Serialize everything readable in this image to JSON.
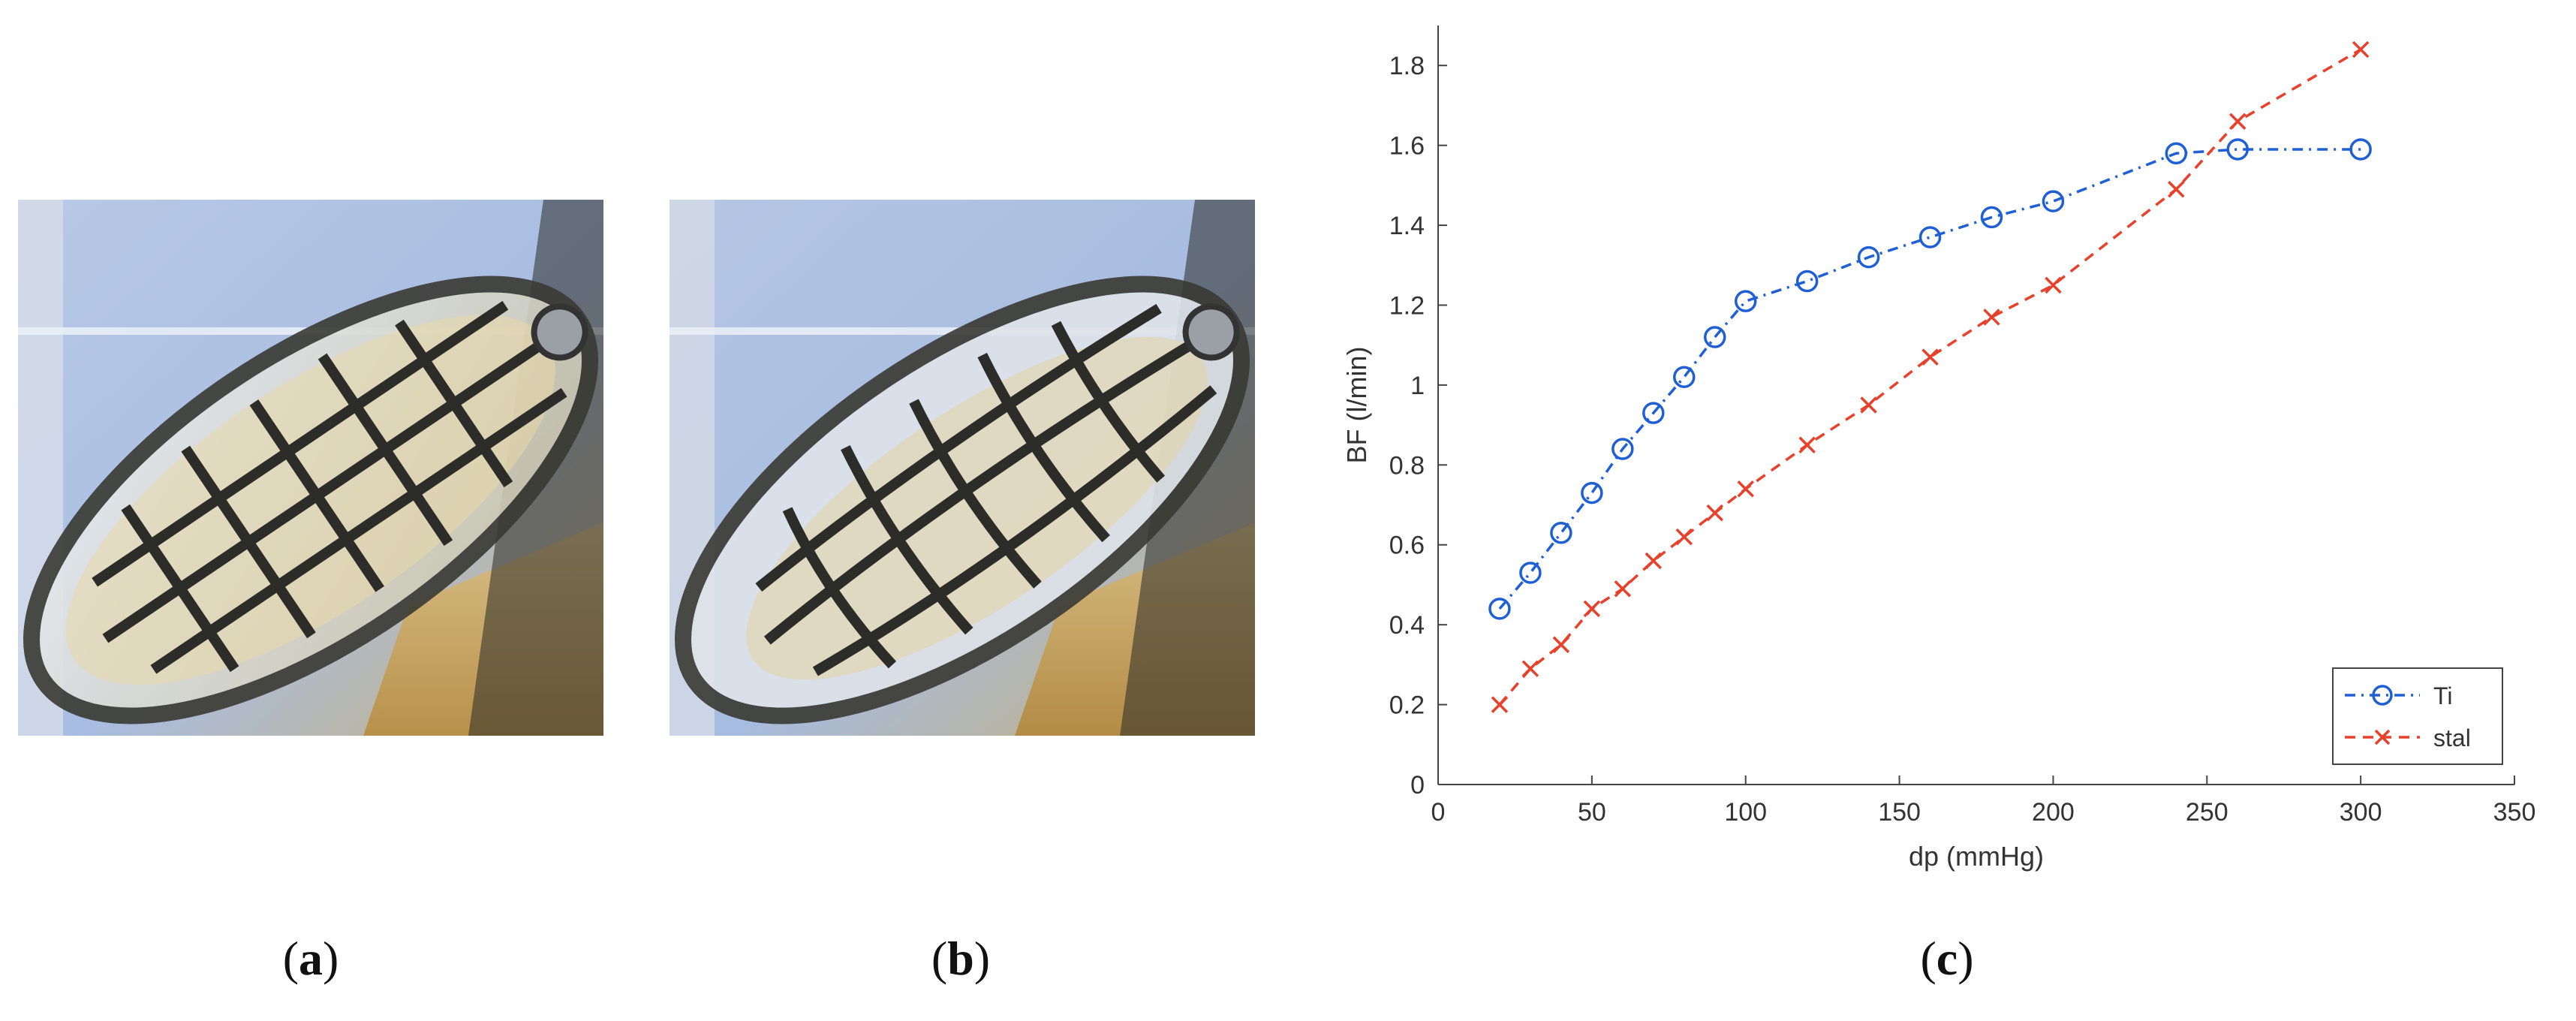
{
  "captions": {
    "a": "a",
    "b": "b",
    "c": "c"
  },
  "chart_data": {
    "type": "line",
    "xlabel": "dp (mmHg)",
    "ylabel": "BF (l/min)",
    "xlim": [
      0,
      350
    ],
    "ylim": [
      0,
      1.9
    ],
    "xticks": [
      0,
      50,
      100,
      150,
      200,
      250,
      300,
      350
    ],
    "yticks": [
      0,
      0.2,
      0.4,
      0.6,
      0.8,
      1,
      1.2,
      1.4,
      1.6,
      1.8
    ],
    "legend_position": "bottom-right",
    "series": [
      {
        "name": "Ti",
        "color": "#1f5fd6",
        "marker": "circle",
        "style": "dash-dot",
        "x": [
          20,
          30,
          40,
          50,
          60,
          70,
          80,
          90,
          100,
          120,
          140,
          160,
          180,
          200,
          240,
          260,
          300
        ],
        "y": [
          0.44,
          0.53,
          0.63,
          0.73,
          0.84,
          0.93,
          1.02,
          1.12,
          1.21,
          1.26,
          1.32,
          1.37,
          1.42,
          1.46,
          1.58,
          1.59,
          1.59
        ]
      },
      {
        "name": "stal",
        "color": "#e8402a",
        "marker": "x",
        "style": "dashed",
        "x": [
          20,
          30,
          40,
          50,
          60,
          70,
          80,
          90,
          100,
          120,
          140,
          160,
          180,
          200,
          240,
          260,
          300
        ],
        "y": [
          0.2,
          0.29,
          0.35,
          0.44,
          0.49,
          0.56,
          0.62,
          0.68,
          0.74,
          0.85,
          0.95,
          1.07,
          1.17,
          1.25,
          1.49,
          1.66,
          1.84
        ]
      }
    ]
  }
}
